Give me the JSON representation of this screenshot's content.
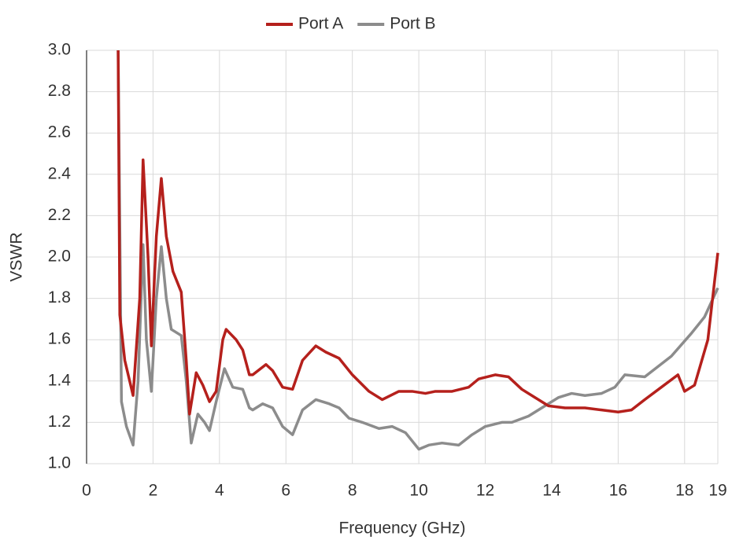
{
  "chart_data": {
    "type": "line",
    "x_label": "Frequency (GHz)",
    "y_label": "VSWR",
    "xlim": [
      0,
      19
    ],
    "xticks": [
      0,
      2,
      4,
      6,
      8,
      10,
      12,
      14,
      16,
      18,
      19
    ],
    "ylim": [
      1.0,
      3.0
    ],
    "yticks": [
      {
        "value": 1.0,
        "label": "1.0"
      },
      1.2,
      1.4,
      1.6,
      1.8,
      {
        "value": 2.0,
        "label": "2.0"
      },
      2.2,
      2.4,
      2.6,
      2.8,
      {
        "value": 3.0,
        "label": "3.0"
      }
    ],
    "grid": true,
    "legend": "top",
    "series": [
      {
        "name": "Port A",
        "color": "#b5201c",
        "x": [
          0.95,
          1.0,
          1.15,
          1.4,
          1.6,
          1.7,
          1.85,
          1.95,
          2.1,
          2.25,
          2.4,
          2.6,
          2.85,
          3.0,
          3.1,
          3.3,
          3.5,
          3.7,
          3.9,
          4.1,
          4.2,
          4.5,
          4.7,
          4.9,
          5.0,
          5.4,
          5.6,
          5.9,
          6.2,
          6.5,
          6.9,
          7.2,
          7.6,
          8.0,
          8.5,
          8.9,
          9.4,
          9.8,
          10.2,
          10.5,
          11.0,
          11.5,
          11.8,
          12.3,
          12.7,
          13.1,
          13.5,
          13.9,
          14.4,
          15.0,
          15.5,
          16.0,
          16.4,
          16.8,
          17.3,
          17.8,
          18.0,
          18.3,
          18.7,
          19.0
        ],
        "values": [
          3.0,
          1.72,
          1.5,
          1.33,
          1.8,
          2.47,
          2.0,
          1.57,
          2.1,
          2.38,
          2.1,
          1.93,
          1.83,
          1.5,
          1.24,
          1.44,
          1.38,
          1.3,
          1.35,
          1.6,
          1.65,
          1.6,
          1.55,
          1.43,
          1.43,
          1.48,
          1.45,
          1.37,
          1.36,
          1.5,
          1.57,
          1.54,
          1.51,
          1.43,
          1.35,
          1.31,
          1.35,
          1.35,
          1.34,
          1.35,
          1.35,
          1.37,
          1.41,
          1.43,
          1.42,
          1.36,
          1.32,
          1.28,
          1.27,
          1.27,
          1.26,
          1.25,
          1.26,
          1.31,
          1.37,
          1.43,
          1.35,
          1.38,
          1.6,
          2.02
        ]
      },
      {
        "name": "Port B",
        "color": "#8c8c8c",
        "x": [
          0.95,
          1.05,
          1.2,
          1.4,
          1.55,
          1.7,
          1.8,
          1.95,
          2.1,
          2.25,
          2.4,
          2.55,
          2.85,
          3.0,
          3.15,
          3.35,
          3.55,
          3.7,
          3.9,
          4.15,
          4.4,
          4.7,
          4.9,
          5.0,
          5.3,
          5.6,
          5.9,
          6.2,
          6.5,
          6.9,
          7.3,
          7.6,
          7.9,
          8.3,
          8.8,
          9.2,
          9.6,
          10.0,
          10.3,
          10.7,
          11.2,
          11.6,
          12.0,
          12.5,
          12.8,
          13.3,
          13.8,
          14.2,
          14.6,
          15.0,
          15.5,
          15.9,
          16.2,
          16.8,
          17.2,
          17.6,
          18.2,
          18.6,
          19.0
        ],
        "values": [
          3.0,
          1.3,
          1.18,
          1.09,
          1.4,
          2.06,
          1.6,
          1.35,
          1.8,
          2.05,
          1.8,
          1.65,
          1.62,
          1.4,
          1.1,
          1.24,
          1.2,
          1.16,
          1.3,
          1.46,
          1.37,
          1.36,
          1.27,
          1.26,
          1.29,
          1.27,
          1.18,
          1.14,
          1.26,
          1.31,
          1.29,
          1.27,
          1.22,
          1.2,
          1.17,
          1.18,
          1.15,
          1.07,
          1.09,
          1.1,
          1.09,
          1.14,
          1.18,
          1.2,
          1.2,
          1.23,
          1.28,
          1.32,
          1.34,
          1.33,
          1.34,
          1.37,
          1.43,
          1.42,
          1.47,
          1.52,
          1.63,
          1.71,
          1.85
        ]
      }
    ]
  }
}
